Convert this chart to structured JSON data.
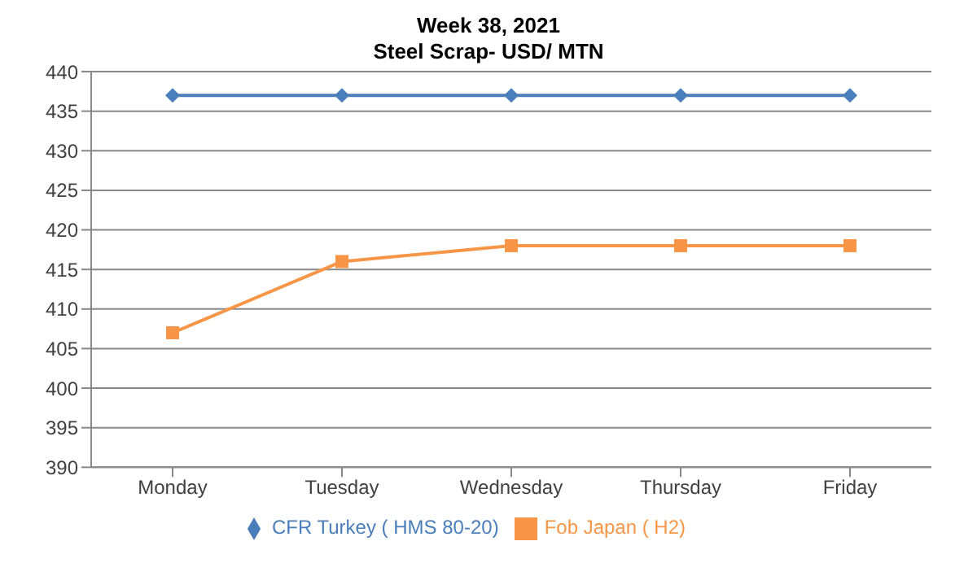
{
  "chart_data": {
    "type": "line",
    "title": "Week 38, 2021",
    "subtitle": "Steel Scrap- USD/ MTN",
    "categories": [
      "Monday",
      "Tuesday",
      "Wednesday",
      "Thursday",
      "Friday"
    ],
    "series": [
      {
        "name": "CFR Turkey ( HMS 80-20)",
        "color": "#4a7ebb",
        "marker": "diamond",
        "values": [
          437,
          437,
          437,
          437,
          437
        ]
      },
      {
        "name": "Fob Japan ( H2)",
        "color": "#f79646",
        "marker": "square",
        "values": [
          407,
          416,
          418,
          418,
          418
        ]
      }
    ],
    "ylim": [
      390,
      440
    ],
    "yticks": [
      390,
      395,
      400,
      405,
      410,
      415,
      420,
      425,
      430,
      435,
      440
    ],
    "grid": "y",
    "legend": "bottom"
  }
}
